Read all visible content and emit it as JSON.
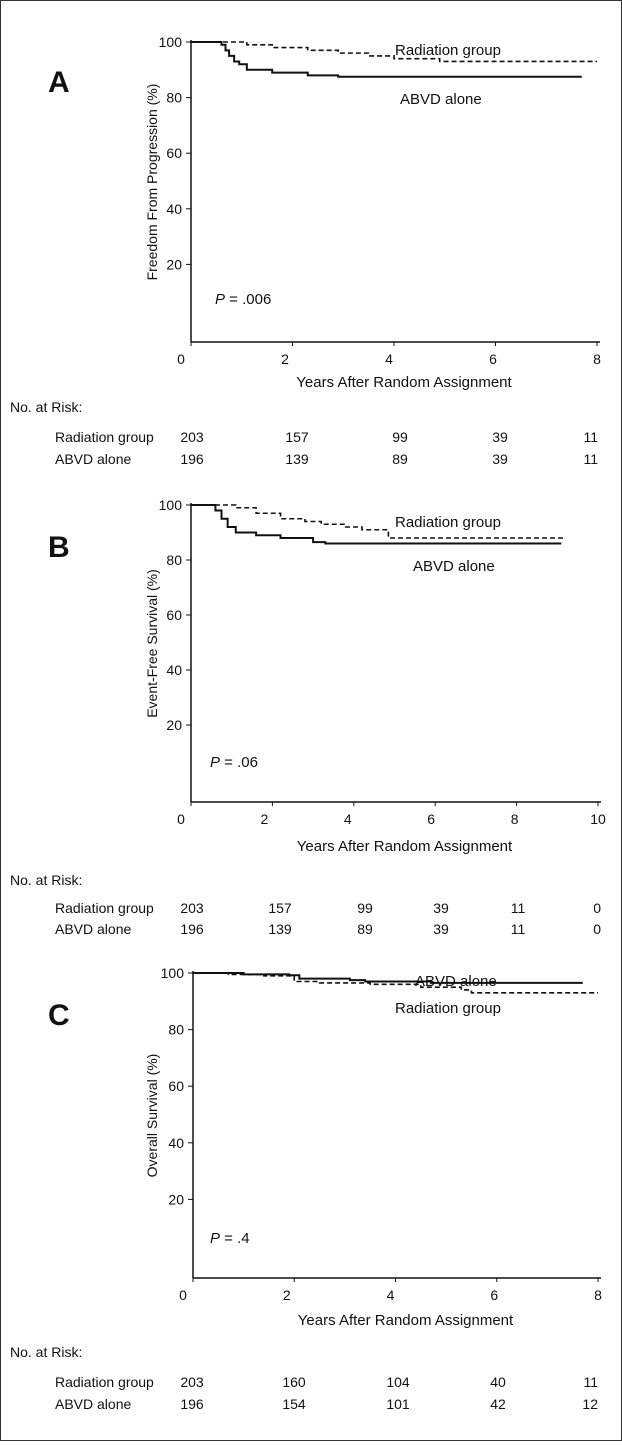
{
  "chart_data": [
    {
      "type": "line",
      "panel": "A",
      "ylabel": "Freedom From Progression (%)",
      "xlabel": "Years After Random Assignment",
      "xlim": [
        0,
        8
      ],
      "ylim": [
        0,
        100
      ],
      "xticks": [
        "0",
        "2",
        "4",
        "6",
        "8"
      ],
      "yticks": [
        "20",
        "40",
        "60",
        "80",
        "100"
      ],
      "annotation": {
        "prefix": "P",
        "value": " = .006"
      },
      "series": [
        {
          "name": "Radiation group",
          "style": "dashed",
          "points": [
            [
              0,
              100
            ],
            [
              0.7,
              100
            ],
            [
              1.1,
              99
            ],
            [
              1.6,
              98
            ],
            [
              2.3,
              97
            ],
            [
              2.9,
              96
            ],
            [
              3.5,
              95
            ],
            [
              4.0,
              94
            ],
            [
              4.9,
              93
            ],
            [
              8.0,
              93
            ]
          ]
        },
        {
          "name": "ABVD alone",
          "style": "solid",
          "points": [
            [
              0,
              100
            ],
            [
              0.45,
              100
            ],
            [
              0.6,
              99
            ],
            [
              0.68,
              97
            ],
            [
              0.75,
              95
            ],
            [
              0.85,
              93
            ],
            [
              0.95,
              92
            ],
            [
              1.1,
              90
            ],
            [
              1.6,
              89
            ],
            [
              2.3,
              88
            ],
            [
              2.9,
              87.5
            ],
            [
              7.7,
              87.5
            ]
          ]
        }
      ],
      "risk_table": {
        "title": "No. at Risk:",
        "rows": [
          {
            "label": "Radiation group",
            "values": [
              "203",
              "157",
              "99",
              "39",
              "11"
            ]
          },
          {
            "label": "ABVD alone",
            "values": [
              "196",
              "139",
              "89",
              "39",
              "11"
            ]
          }
        ]
      }
    },
    {
      "type": "line",
      "panel": "B",
      "ylabel": "Event-Free Survival (%)",
      "xlabel": "Years After Random Assignment",
      "xlim": [
        0,
        10
      ],
      "ylim": [
        0,
        100
      ],
      "xticks": [
        "0",
        "2",
        "4",
        "6",
        "8",
        "10"
      ],
      "yticks": [
        "20",
        "40",
        "60",
        "80",
        "100"
      ],
      "annotation": {
        "prefix": "P",
        "value": " = .06"
      },
      "series": [
        {
          "name": "Radiation group",
          "style": "dashed",
          "points": [
            [
              0,
              100
            ],
            [
              0.7,
              100
            ],
            [
              1.1,
              99
            ],
            [
              1.6,
              97
            ],
            [
              2.2,
              95
            ],
            [
              2.8,
              94
            ],
            [
              3.2,
              93
            ],
            [
              3.8,
              92
            ],
            [
              4.2,
              91
            ],
            [
              4.7,
              91
            ],
            [
              4.85,
              88
            ],
            [
              9.2,
              88
            ]
          ]
        },
        {
          "name": "ABVD alone",
          "style": "solid",
          "points": [
            [
              0,
              100
            ],
            [
              0.45,
              100
            ],
            [
              0.6,
              98
            ],
            [
              0.75,
              95
            ],
            [
              0.9,
              92
            ],
            [
              1.1,
              90
            ],
            [
              1.6,
              89
            ],
            [
              2.2,
              88
            ],
            [
              3.0,
              86.5
            ],
            [
              3.3,
              86
            ],
            [
              9.1,
              86
            ]
          ]
        }
      ],
      "risk_table": {
        "title": "No. at Risk:",
        "rows": [
          {
            "label": "Radiation group",
            "values": [
              "203",
              "157",
              "99",
              "39",
              "11",
              "0"
            ]
          },
          {
            "label": "ABVD alone",
            "values": [
              "196",
              "139",
              "89",
              "39",
              "11",
              "0"
            ]
          }
        ]
      }
    },
    {
      "type": "line",
      "panel": "C",
      "ylabel": "Overall Survival (%)",
      "xlabel": "Years After Random Assignment",
      "xlim": [
        0,
        8
      ],
      "ylim": [
        0,
        100
      ],
      "xticks": [
        "0",
        "2",
        "4",
        "6",
        "8"
      ],
      "yticks": [
        "20",
        "40",
        "60",
        "80",
        "100"
      ],
      "annotation": {
        "prefix": "P",
        "value": " = .4"
      },
      "series": [
        {
          "name": "ABVD alone",
          "style": "solid",
          "points": [
            [
              0,
              100
            ],
            [
              0.8,
              100
            ],
            [
              1.0,
              99.5
            ],
            [
              1.9,
              99.2
            ],
            [
              2.1,
              98
            ],
            [
              3.1,
              97.5
            ],
            [
              3.4,
              97
            ],
            [
              4.7,
              96.5
            ],
            [
              7.7,
              96.5
            ]
          ]
        },
        {
          "name": "Radiation group",
          "style": "dashed",
          "points": [
            [
              0,
              100
            ],
            [
              0.7,
              99.5
            ],
            [
              1.4,
              99
            ],
            [
              2.0,
              97
            ],
            [
              2.5,
              96.5
            ],
            [
              3.5,
              96
            ],
            [
              4.5,
              95
            ],
            [
              5.0,
              95
            ],
            [
              5.3,
              94
            ],
            [
              5.5,
              93
            ],
            [
              8.0,
              93
            ]
          ]
        }
      ],
      "risk_table": {
        "title": "No. at Risk:",
        "rows": [
          {
            "label": "Radiation group",
            "values": [
              "203",
              "160",
              "104",
              "40",
              "11"
            ]
          },
          {
            "label": "ABVD alone",
            "values": [
              "196",
              "154",
              "101",
              "42",
              "12"
            ]
          }
        ]
      }
    }
  ]
}
